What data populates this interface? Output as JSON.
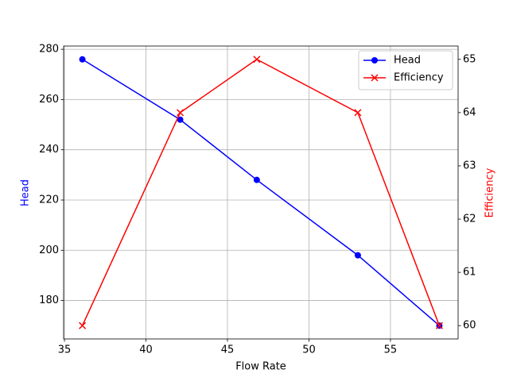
{
  "chart_data": {
    "type": "line",
    "x_label": "Flow Rate",
    "y_label": "Head",
    "y2_label": "Efficiency",
    "x": [
      36.1,
      42.1,
      46.8,
      53.0,
      58.0
    ],
    "series": [
      {
        "name": "Head",
        "color": "#0000ff",
        "marker": "o",
        "values": [
          276,
          252,
          228,
          198,
          170
        ]
      },
      {
        "name": "Efficiency",
        "color": "#ff0000",
        "marker": "x",
        "axis": "y2",
        "values": [
          60,
          64,
          65,
          64,
          60
        ]
      }
    ],
    "xlim": [
      34.95,
      59.15
    ],
    "xticks": [
      35,
      40,
      45,
      50,
      55
    ],
    "ylim": [
      164.7,
      281.3
    ],
    "yticks": [
      180,
      200,
      220,
      240,
      260,
      280
    ],
    "y2lim": [
      59.75,
      65.25
    ],
    "y2ticks": [
      60,
      61,
      62,
      63,
      64,
      65
    ],
    "grid": true,
    "legend": "upper right"
  }
}
